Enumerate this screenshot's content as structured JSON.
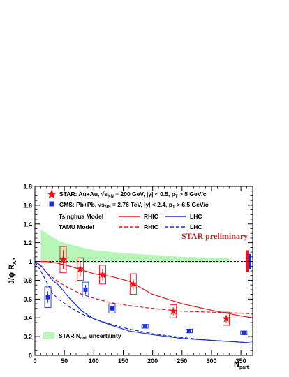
{
  "chart_data": {
    "type": "scatter",
    "title": "",
    "xlabel": "N",
    "xlabel_sub": "part",
    "ylabel": "J/ψ R",
    "ylabel_sub": "AA",
    "xlim": [
      0,
      370
    ],
    "ylim": [
      0,
      1.8
    ],
    "x_ticks": [
      0,
      50,
      100,
      150,
      200,
      250,
      300,
      350
    ],
    "x_tick_labels": [
      "0",
      "50",
      "100",
      "150",
      "200",
      "250",
      "300",
      "350"
    ],
    "y_ticks": [
      0,
      0.2,
      0.4,
      0.6,
      0.8,
      1,
      1.2,
      1.4,
      1.6,
      1.8
    ],
    "y_tick_labels": [
      "0",
      "0.2",
      "0.4",
      "0.6",
      "0.8",
      "1",
      "1.2",
      "1.4",
      "1.6",
      "1.8"
    ],
    "grid": false,
    "reference_line": {
      "y": 1.0,
      "style": "dashed",
      "color": "#000000"
    },
    "annotation": {
      "text": "STAR preliminary",
      "color": "#cc2222"
    },
    "legend": {
      "placement": "top-left",
      "star_text": "STAR: Au+Au, ",
      "star_math": "√s",
      "star_math_sub": "NN",
      "star_rest": " = 200 GeV, |y| < 0.5, p",
      "star_pt_sub": "T",
      "star_tail": " > 5 GeV/c",
      "cms_text": "CMS: Pb+Pb, ",
      "cms_math": "√s",
      "cms_math_sub": "NN",
      "cms_rest": " = 2.76 TeV, |y| < 2.4, p",
      "cms_pt_sub": "T",
      "cms_tail": " > 6.5 GeV/c",
      "tsinghua": "Tsinghua Model",
      "tamu": "TAMU Model",
      "rhic": "RHIC",
      "lhc": "LHC",
      "ncoll_prefix": "STAR N",
      "ncoll_sub": "coll",
      "ncoll_suffix": " uncertainty"
    },
    "colors": {
      "star": "#e8141c",
      "cms": "#1a2fd6",
      "band": "#b8f5b8",
      "axis": "#000000"
    },
    "series": [
      {
        "name": "STAR: Au+Au",
        "marker": "star",
        "color": "#e8141c",
        "x": [
          48,
          77,
          115,
          167,
          235,
          325
        ],
        "y": [
          1.02,
          0.92,
          0.86,
          0.76,
          0.47,
          0.39
        ],
        "yerr": [
          0.1,
          0.08,
          0.06,
          0.06,
          0.04,
          0.04
        ],
        "sys": [
          0.14,
          0.12,
          0.1,
          0.11,
          0.07,
          0.07
        ]
      },
      {
        "name": "CMS: Pb+Pb",
        "marker": "square",
        "color": "#1a2fd6",
        "x": [
          22,
          86,
          131,
          187,
          262,
          355
        ],
        "y": [
          0.62,
          0.7,
          0.5,
          0.31,
          0.26,
          0.24
        ],
        "yerr": [
          0.06,
          0.05,
          0.03,
          0.02,
          0.02,
          0.02
        ],
        "sys": [
          0.11,
          0.08,
          0.05,
          0.02,
          0.02,
          0.02
        ]
      }
    ],
    "models": [
      {
        "name": "Tsinghua RHIC",
        "style": "solid",
        "color": "#e8141c",
        "x": [
          0,
          10,
          20,
          40,
          60,
          80,
          100,
          130,
          160,
          180,
          200,
          250,
          300,
          350,
          370
        ],
        "y": [
          1.0,
          1.0,
          1.0,
          0.98,
          0.95,
          0.91,
          0.87,
          0.84,
          0.79,
          0.72,
          0.65,
          0.55,
          0.48,
          0.42,
          0.4
        ]
      },
      {
        "name": "TAMU RHIC",
        "style": "dashed",
        "color": "#e8141c",
        "x": [
          0,
          10,
          20,
          30,
          40,
          60,
          80,
          100,
          130,
          160,
          200,
          250,
          300,
          350,
          370
        ],
        "y": [
          1.0,
          0.95,
          0.88,
          0.83,
          0.78,
          0.71,
          0.65,
          0.61,
          0.56,
          0.53,
          0.5,
          0.47,
          0.46,
          0.45,
          0.44
        ]
      },
      {
        "name": "Tsinghua LHC",
        "style": "solid",
        "color": "#1a2fd6",
        "x": [
          0,
          10,
          20,
          30,
          40,
          60,
          80,
          100,
          130,
          160,
          200,
          250,
          300,
          350,
          370
        ],
        "y": [
          1.0,
          0.96,
          0.88,
          0.8,
          0.75,
          0.6,
          0.47,
          0.39,
          0.32,
          0.26,
          0.22,
          0.18,
          0.16,
          0.14,
          0.13
        ]
      },
      {
        "name": "TAMU LHC",
        "style": "dashed",
        "color": "#1a2fd6",
        "x": [
          0,
          10,
          20,
          30,
          40,
          60,
          80,
          100,
          130,
          160,
          200,
          250,
          300,
          350,
          370
        ],
        "y": [
          1.0,
          0.9,
          0.78,
          0.66,
          0.6,
          0.51,
          0.44,
          0.39,
          0.33,
          0.28,
          0.23,
          0.19,
          0.16,
          0.14,
          0.13
        ]
      }
    ],
    "ncoll_band": {
      "name": "STAR Ncoll uncertainty",
      "color": "#b8f5b8",
      "x": [
        10,
        20,
        30,
        40,
        50,
        60,
        80,
        100,
        150,
        200,
        250,
        300,
        330
      ],
      "upper": [
        1.34,
        1.3,
        1.26,
        1.22,
        1.2,
        1.18,
        1.15,
        1.12,
        1.09,
        1.07,
        1.05,
        1.04,
        1.04
      ],
      "lower": [
        0.98,
        0.98,
        0.99,
        0.99,
        0.99,
        0.99,
        0.99,
        0.99,
        0.99,
        0.99,
        0.99,
        0.99,
        0.99
      ]
    },
    "global_uncertainty": [
      {
        "name": "STAR global",
        "color": "#e8141c",
        "ylow": 0.89,
        "yhigh": 1.12
      },
      {
        "name": "CMS global",
        "color": "#1a2fd6",
        "ylow": 0.92,
        "yhigh": 1.08
      }
    ]
  }
}
